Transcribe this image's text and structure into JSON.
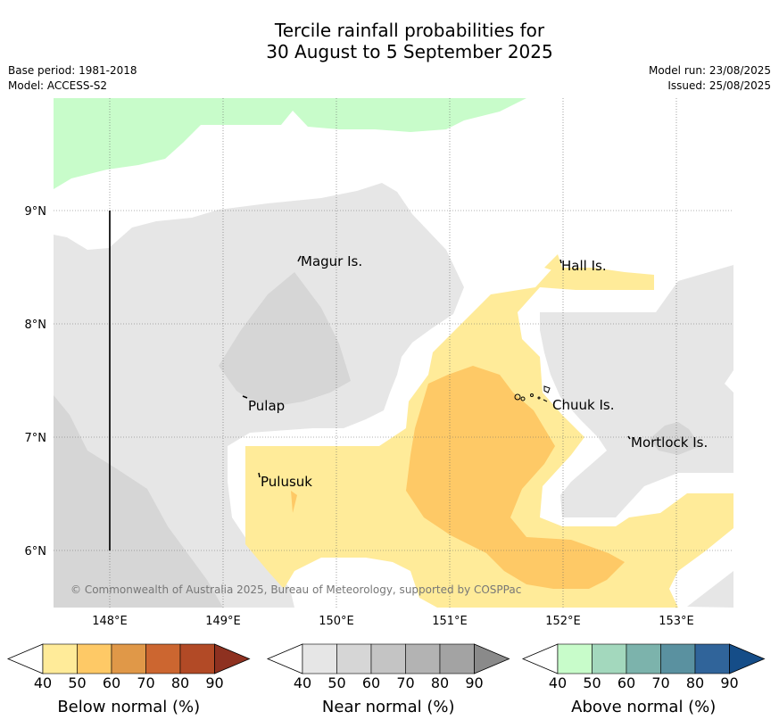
{
  "title_line1": "Tercile rainfall probabilities for",
  "title_line2": "30 August to 5 September 2025",
  "meta": {
    "base_period": "Base period: 1981-2018",
    "model": "Model: ACCESS-S2",
    "model_run": "Model run: 23/08/2025",
    "issued": "Issued: 25/08/2025"
  },
  "map": {
    "lat_labels": [
      "9°N",
      "8°N",
      "7°N",
      "6°N"
    ],
    "lon_labels": [
      "148°E",
      "149°E",
      "150°E",
      "151°E",
      "152°E",
      "153°E"
    ],
    "places": [
      {
        "name": "Magur Is."
      },
      {
        "name": "Hall Is."
      },
      {
        "name": "Pulap"
      },
      {
        "name": "Chuuk Is."
      },
      {
        "name": "Mortlock Is."
      },
      {
        "name": "Pulusuk"
      }
    ],
    "copyright": "© Commonwealth of Australia 2025, Bureau of Meteorology, supported by COSPPac"
  },
  "colorbars": [
    {
      "label": "Below normal (%)",
      "ticks": [
        "40",
        "50",
        "60",
        "70",
        "80",
        "90"
      ],
      "colors": [
        "#ffffff",
        "#ffeb99",
        "#fec966",
        "#e09848",
        "#cc6630",
        "#b24a26",
        "#8e3120"
      ]
    },
    {
      "label": "Near normal (%)",
      "ticks": [
        "40",
        "50",
        "60",
        "70",
        "80",
        "90"
      ],
      "colors": [
        "#ffffff",
        "#e6e6e6",
        "#d6d6d6",
        "#c4c4c4",
        "#b3b3b3",
        "#a3a3a3",
        "#8a8a8a"
      ]
    },
    {
      "label": "Above normal (%)",
      "ticks": [
        "40",
        "50",
        "60",
        "70",
        "80",
        "90"
      ],
      "colors": [
        "#ffffff",
        "#c8fcca",
        "#a3d8bd",
        "#7cb3ac",
        "#5a91a0",
        "#30649a",
        "#154d88"
      ]
    }
  ]
}
